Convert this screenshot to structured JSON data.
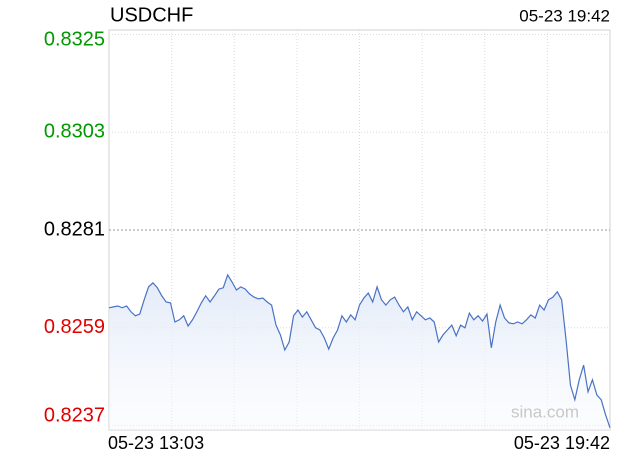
{
  "chart_data": {
    "type": "line",
    "title": "USDCHF",
    "timestamp": "05-23 19:42",
    "watermark": "sina.com",
    "categories": [
      "05-23 13:03",
      null,
      null,
      null,
      null,
      null,
      null,
      null,
      null,
      null,
      null,
      null,
      null,
      null,
      null,
      null,
      null,
      null,
      null,
      null,
      null,
      null,
      null,
      null,
      null,
      null,
      null,
      null,
      null,
      null,
      null,
      null,
      null,
      null,
      null,
      null,
      null,
      null,
      null,
      null,
      null,
      null,
      null,
      null,
      null,
      null,
      null,
      null,
      null,
      null,
      null,
      null,
      null,
      null,
      null,
      null,
      null,
      null,
      null,
      null,
      null,
      null,
      null,
      null,
      null,
      null,
      null,
      null,
      null,
      null,
      null,
      null,
      null,
      null,
      null,
      null,
      null,
      null,
      null,
      null,
      null,
      null,
      null,
      null,
      null,
      null,
      null,
      null,
      null,
      null,
      null,
      null,
      null,
      null,
      null,
      null,
      null,
      null,
      null,
      null,
      null,
      null,
      null,
      null,
      null,
      null,
      null,
      null,
      null,
      null,
      null,
      null,
      null,
      null,
      "05-23 19:42"
    ],
    "series": [
      {
        "color": "#4a72c4",
        "values": [
          0.82635,
          0.82637,
          0.82639,
          0.82635,
          0.82639,
          0.82626,
          0.82617,
          0.82621,
          0.82653,
          0.82682,
          0.82691,
          0.8268,
          0.82662,
          0.82648,
          0.82646,
          0.82603,
          0.82608,
          0.82617,
          0.82594,
          0.82608,
          0.82626,
          0.82646,
          0.82662,
          0.82648,
          0.82662,
          0.82677,
          0.8268,
          0.82709,
          0.82693,
          0.82675,
          0.82682,
          0.82677,
          0.82666,
          0.82659,
          0.82655,
          0.82657,
          0.82648,
          0.82641,
          0.82596,
          0.82574,
          0.8254,
          0.82558,
          0.82617,
          0.8263,
          0.82614,
          0.82626,
          0.82608,
          0.8259,
          0.82585,
          0.82567,
          0.82542,
          0.82567,
          0.82585,
          0.82617,
          0.82603,
          0.82619,
          0.82608,
          0.82641,
          0.82657,
          0.82668,
          0.82648,
          0.82682,
          0.82653,
          0.82641,
          0.82653,
          0.82659,
          0.82641,
          0.82626,
          0.82637,
          0.82608,
          0.82626,
          0.82617,
          0.82608,
          0.82612,
          0.82603,
          0.82558,
          0.82574,
          0.82585,
          0.82596,
          0.82572,
          0.82596,
          0.8259,
          0.82623,
          0.82608,
          0.82617,
          0.82605,
          0.82621,
          0.82545,
          0.82603,
          0.82641,
          0.82612,
          0.82601,
          0.82599,
          0.82603,
          0.82599,
          0.82608,
          0.82619,
          0.82612,
          0.82641,
          0.8263,
          0.82653,
          0.82659,
          0.82671,
          0.82653,
          0.82563,
          0.82461,
          0.82428,
          0.82473,
          0.82506,
          0.82446,
          0.82473,
          0.82439,
          0.82428,
          0.82394,
          0.82365
        ]
      }
    ],
    "ylim": [
      0.8236,
      0.8326
    ],
    "yticks": [
      0.8237,
      0.8259,
      0.8281,
      0.8303,
      0.8325
    ],
    "ytick_colors": [
      "#e00000",
      "#e00000",
      "#000000",
      "#009900",
      "#009900"
    ],
    "grid": true,
    "area": true
  }
}
